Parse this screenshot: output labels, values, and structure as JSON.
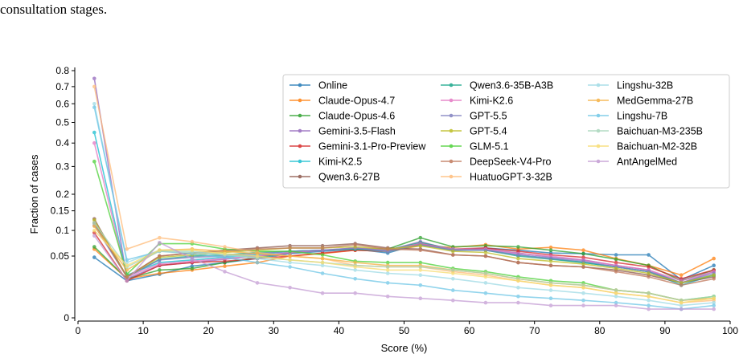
{
  "caption_fragment": "consultation stages.",
  "chart_data": {
    "type": "line",
    "title": "",
    "xlabel": "Score (%)",
    "ylabel": "Fraction of cases",
    "xlim": [
      0,
      100
    ],
    "ylim": [
      0,
      0.8
    ],
    "y_scale": "sqrt",
    "x_ticks": [
      0,
      10,
      20,
      30,
      40,
      50,
      60,
      70,
      80,
      90,
      100
    ],
    "y_ticks": [
      0,
      0.05,
      0.1,
      0.15,
      0.2,
      0.3,
      0.4,
      0.5,
      0.6,
      0.7,
      0.8
    ],
    "y_tick_labels": [
      "0",
      "0.05",
      "0.1",
      "0.15",
      "0.2",
      "0.3",
      "0.4",
      "0.5",
      "0.6",
      "0.7",
      "0.8"
    ],
    "grid": false,
    "legend_position": "top-right",
    "x": [
      2.5,
      7.5,
      12.5,
      17.5,
      22.5,
      27.5,
      32.5,
      37.5,
      42.5,
      47.5,
      52.5,
      57.5,
      62.5,
      67.5,
      72.5,
      77.5,
      82.5,
      87.5,
      92.5,
      97.5
    ],
    "series": [
      {
        "name": "Online",
        "color": "#1f77b4",
        "values": [
          0.048,
          0.018,
          0.025,
          0.035,
          0.04,
          0.046,
          0.054,
          0.058,
          0.062,
          0.055,
          0.072,
          0.06,
          0.064,
          0.06,
          0.055,
          0.054,
          0.052,
          0.052,
          0.019,
          0.036
        ]
      },
      {
        "name": "Claude-Opus-4.7",
        "color": "#ff7f0e",
        "values": [
          0.062,
          0.02,
          0.026,
          0.03,
          0.035,
          0.04,
          0.05,
          0.054,
          0.06,
          0.058,
          0.068,
          0.065,
          0.07,
          0.062,
          0.065,
          0.06,
          0.046,
          0.036,
          0.024,
          0.046
        ]
      },
      {
        "name": "Claude-Opus-4.6",
        "color": "#2ca02c",
        "values": [
          0.066,
          0.02,
          0.03,
          0.032,
          0.04,
          0.048,
          0.056,
          0.06,
          0.063,
          0.062,
          0.084,
          0.066,
          0.068,
          0.066,
          0.06,
          0.054,
          0.045,
          0.036,
          0.018,
          0.03
        ]
      },
      {
        "name": "Gemini-3.5-Flash",
        "color": "#9467bd",
        "values": [
          0.75,
          0.02,
          0.036,
          0.04,
          0.045,
          0.05,
          0.055,
          0.06,
          0.062,
          0.06,
          0.076,
          0.06,
          0.062,
          0.055,
          0.048,
          0.044,
          0.036,
          0.03,
          0.016,
          0.028
        ]
      },
      {
        "name": "Gemini-3.1-Pro-Preview",
        "color": "#d62728",
        "values": [
          0.095,
          0.018,
          0.036,
          0.04,
          0.042,
          0.046,
          0.05,
          0.055,
          0.06,
          0.058,
          0.072,
          0.062,
          0.064,
          0.058,
          0.052,
          0.048,
          0.04,
          0.034,
          0.02,
          0.03
        ]
      },
      {
        "name": "Kimi-K2.5",
        "color": "#17becf",
        "values": [
          0.45,
          0.024,
          0.04,
          0.044,
          0.048,
          0.052,
          0.058,
          0.06,
          0.062,
          0.058,
          0.07,
          0.06,
          0.06,
          0.052,
          0.046,
          0.04,
          0.034,
          0.028,
          0.014,
          0.024
        ]
      },
      {
        "name": "Qwen3.6-27B",
        "color": "#8c564b",
        "values": [
          0.128,
          0.022,
          0.05,
          0.055,
          0.06,
          0.064,
          0.068,
          0.068,
          0.072,
          0.064,
          0.062,
          0.052,
          0.05,
          0.04,
          0.036,
          0.034,
          0.03,
          0.024,
          0.016,
          0.022
        ]
      },
      {
        "name": "Qwen3.6-35B-A3B",
        "color": "#17a589",
        "values": [
          0.118,
          0.022,
          0.045,
          0.05,
          0.052,
          0.056,
          0.058,
          0.06,
          0.062,
          0.06,
          0.074,
          0.062,
          0.06,
          0.05,
          0.045,
          0.04,
          0.034,
          0.028,
          0.016,
          0.024
        ]
      },
      {
        "name": "Kimi-K2.6",
        "color": "#e377c2",
        "values": [
          0.4,
          0.022,
          0.038,
          0.042,
          0.046,
          0.05,
          0.056,
          0.06,
          0.064,
          0.06,
          0.072,
          0.062,
          0.062,
          0.054,
          0.05,
          0.044,
          0.036,
          0.03,
          0.018,
          0.028
        ]
      },
      {
        "name": "GPT-5.5",
        "color": "#7f7fbf",
        "values": [
          0.112,
          0.022,
          0.044,
          0.048,
          0.05,
          0.054,
          0.058,
          0.06,
          0.064,
          0.058,
          0.07,
          0.06,
          0.06,
          0.052,
          0.046,
          0.042,
          0.034,
          0.028,
          0.016,
          0.026
        ]
      },
      {
        "name": "GPT-5.4",
        "color": "#bcbd22",
        "values": [
          0.125,
          0.022,
          0.048,
          0.052,
          0.056,
          0.06,
          0.064,
          0.064,
          0.066,
          0.062,
          0.068,
          0.058,
          0.056,
          0.046,
          0.042,
          0.038,
          0.032,
          0.026,
          0.016,
          0.024
        ]
      },
      {
        "name": "GLM-5.1",
        "color": "#4cd137",
        "values": [
          0.32,
          0.025,
          0.072,
          0.072,
          0.062,
          0.058,
          0.058,
          0.052,
          0.042,
          0.04,
          0.04,
          0.032,
          0.028,
          0.022,
          0.018,
          0.016,
          0.01,
          0.008,
          0.004,
          0.006
        ]
      },
      {
        "name": "DeepSeek-V4-Pro",
        "color": "#c0785b",
        "values": [
          0.118,
          0.022,
          0.05,
          0.055,
          0.058,
          0.062,
          0.064,
          0.064,
          0.07,
          0.062,
          0.06,
          0.052,
          0.05,
          0.04,
          0.036,
          0.034,
          0.028,
          0.022,
          0.014,
          0.02
        ]
      },
      {
        "name": "HuatuoGPT-3-32B",
        "color": "#ffbb78",
        "values": [
          0.7,
          0.062,
          0.084,
          0.076,
          0.066,
          0.056,
          0.05,
          0.046,
          0.036,
          0.034,
          0.034,
          0.028,
          0.024,
          0.018,
          0.014,
          0.012,
          0.008,
          0.006,
          0.003,
          0.004
        ]
      },
      {
        "name": "Lingshu-32B",
        "color": "#9edae5",
        "values": [
          0.6,
          0.04,
          0.06,
          0.058,
          0.052,
          0.046,
          0.04,
          0.036,
          0.03,
          0.026,
          0.024,
          0.02,
          0.016,
          0.012,
          0.01,
          0.008,
          0.006,
          0.004,
          0.002,
          0.003
        ]
      },
      {
        "name": "MedGemma-27B",
        "color": "#f5b041",
        "values": [
          0.11,
          0.03,
          0.06,
          0.062,
          0.058,
          0.054,
          0.05,
          0.046,
          0.04,
          0.036,
          0.036,
          0.03,
          0.026,
          0.02,
          0.016,
          0.014,
          0.01,
          0.008,
          0.004,
          0.005
        ]
      },
      {
        "name": "Lingshu-7B",
        "color": "#6ec6e6",
        "values": [
          0.58,
          0.044,
          0.058,
          0.054,
          0.048,
          0.04,
          0.034,
          0.026,
          0.02,
          0.016,
          0.014,
          0.01,
          0.008,
          0.006,
          0.005,
          0.004,
          0.003,
          0.002,
          0.001,
          0.002
        ]
      },
      {
        "name": "Baichuan-M3-235B",
        "color": "#a8d5ba",
        "values": [
          0.118,
          0.034,
          0.058,
          0.056,
          0.052,
          0.048,
          0.044,
          0.04,
          0.036,
          0.034,
          0.034,
          0.03,
          0.026,
          0.02,
          0.016,
          0.014,
          0.01,
          0.008,
          0.004,
          0.006
        ]
      },
      {
        "name": "Baichuan-M2-32B",
        "color": "#f7dc6f",
        "values": [
          0.1,
          0.036,
          0.06,
          0.06,
          0.054,
          0.05,
          0.044,
          0.04,
          0.034,
          0.03,
          0.03,
          0.026,
          0.022,
          0.018,
          0.014,
          0.012,
          0.008,
          0.006,
          0.003,
          0.005
        ]
      },
      {
        "name": "AntAngelMed",
        "color": "#c39bd3",
        "values": [
          0.088,
          0.018,
          0.074,
          0.046,
          0.028,
          0.016,
          0.012,
          0.008,
          0.008,
          0.006,
          0.005,
          0.004,
          0.003,
          0.003,
          0.002,
          0.002,
          0.002,
          0.001,
          0.001,
          0.001
        ]
      }
    ]
  }
}
